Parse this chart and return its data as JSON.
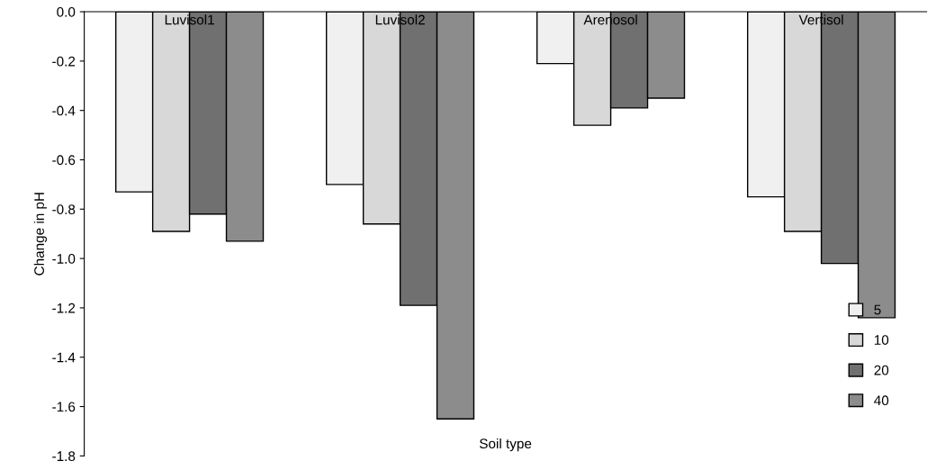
{
  "chart_data": {
    "type": "bar",
    "xlabel": "Soil type",
    "ylabel": "Change in pH",
    "categories": [
      "Luvisol1",
      "Luvisol2",
      "Arenosol",
      "Vertisol"
    ],
    "series": [
      {
        "name": "5",
        "color": "#f0f0f0",
        "values": [
          -0.73,
          -0.7,
          -0.21,
          -0.75
        ]
      },
      {
        "name": "10",
        "color": "#d8d8d8",
        "values": [
          -0.89,
          -0.86,
          -0.46,
          -0.89
        ]
      },
      {
        "name": "20",
        "color": "#707070",
        "values": [
          -0.82,
          -1.19,
          -0.39,
          -1.02
        ]
      },
      {
        "name": "40",
        "color": "#8c8c8c",
        "values": [
          -0.93,
          -1.65,
          -0.35,
          -1.24
        ]
      }
    ],
    "ylim": [
      -1.8,
      0
    ],
    "yticks": [
      {
        "value": 0,
        "label": "0.0"
      },
      {
        "value": -0.2,
        "label": "-0.2"
      },
      {
        "value": -0.4,
        "label": "-0.4"
      },
      {
        "value": -0.6,
        "label": "-0.6"
      },
      {
        "value": -0.8,
        "label": "-0.8"
      },
      {
        "value": -1.0,
        "label": "-1.0"
      },
      {
        "value": -1.2,
        "label": "-1.2"
      },
      {
        "value": -1.4,
        "label": "-1.4"
      },
      {
        "value": -1.6,
        "label": "-1.6"
      },
      {
        "value": -1.8,
        "label": "-1.8"
      }
    ],
    "grid": false,
    "legend": "bottom right"
  }
}
